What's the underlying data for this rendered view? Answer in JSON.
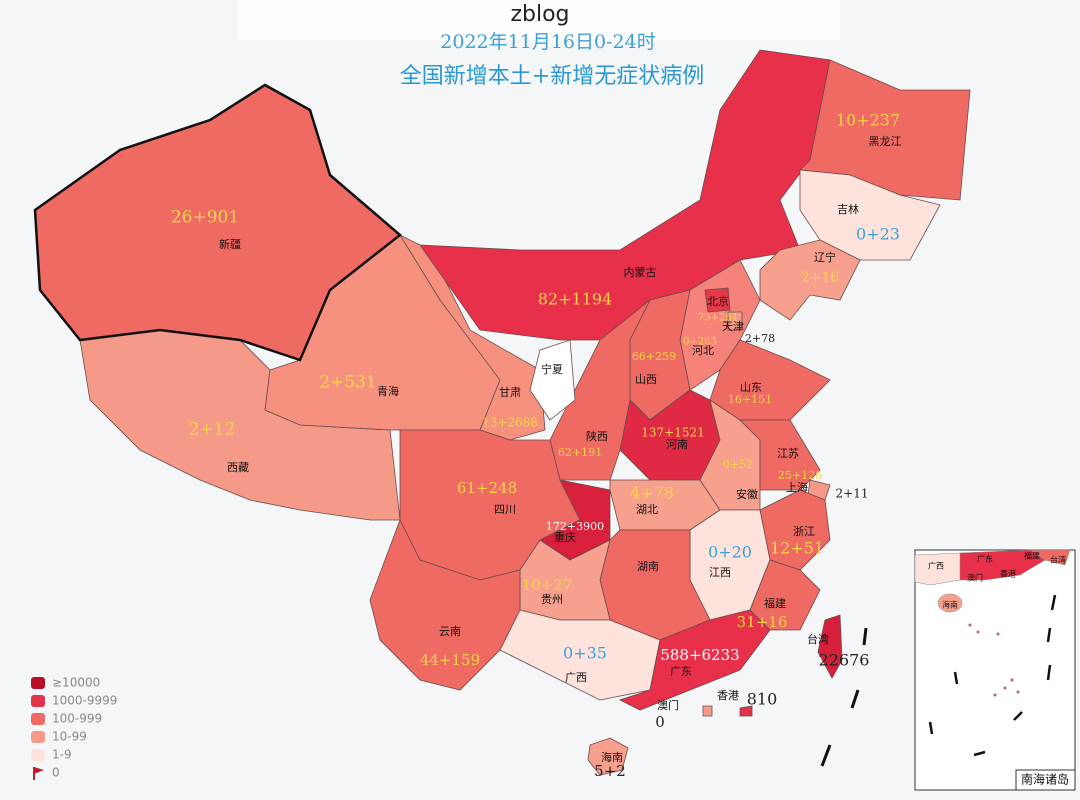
{
  "header": {
    "site": "zblog"
  },
  "title": [
    "2022年11月16日0-24时",
    "全国新增本土+新增无症状病例"
  ],
  "legend": [
    {
      "label": "≥10000",
      "color": "#b8102a"
    },
    {
      "label": "1000-9999",
      "color": "#e2334a"
    },
    {
      "label": "100-999",
      "color": "#f06a64"
    },
    {
      "label": "10-99",
      "color": "#f59a88"
    },
    {
      "label": "1-9",
      "color": "#fde3dc"
    },
    {
      "label": "0",
      "color": "#c41a30"
    }
  ],
  "regions": [
    {
      "name": "新疆",
      "value": "26+901",
      "color": "#f06a64",
      "value_color": "#f5d547"
    },
    {
      "name": "西藏",
      "value": "2+12",
      "color": "#f59a88",
      "value_color": "#f5d547"
    },
    {
      "name": "青海",
      "value": "2+531",
      "color": "#f6917f",
      "value_color": "#f5d547"
    },
    {
      "name": "甘肃",
      "value": "13+2688",
      "color": "#f6917f",
      "value_color": "#f5d547"
    },
    {
      "name": "内蒙古",
      "value": "82+1194",
      "color": "#e8304a",
      "value_color": "#f5d547"
    },
    {
      "name": "黑龙江",
      "value": "10+237",
      "color": "#f06a64",
      "value_color": "#f5d547"
    },
    {
      "name": "吉林",
      "value": "0+23",
      "color": "#fde3dc",
      "value_color": "#3aa0d8"
    },
    {
      "name": "辽宁",
      "value": "2+16",
      "color": "#f7a08e",
      "value_color": "#f5d547"
    },
    {
      "name": "河北",
      "value": "0+263",
      "color": "#f5837a",
      "value_color": "#f5d547"
    },
    {
      "name": "北京",
      "value": "73+261",
      "color": "#e63a4c",
      "value_color": "#f5d547"
    },
    {
      "name": "天津",
      "value": "2+78",
      "color": "#f59a88",
      "value_color": "#222222"
    },
    {
      "name": "山西",
      "value": "66+259",
      "color": "#f06a64",
      "value_color": "#f5d547"
    },
    {
      "name": "山东",
      "value": "16+151",
      "color": "#f06a64",
      "value_color": "#f5d547"
    },
    {
      "name": "河南",
      "value": "137+1521",
      "color": "#e02a45",
      "value_color": "#f5d547"
    },
    {
      "name": "陕西",
      "value": "62+191",
      "color": "#f06a64",
      "value_color": "#f5d547"
    },
    {
      "name": "宁夏",
      "value": "",
      "color": "#ffffff",
      "value_color": "#222222"
    },
    {
      "name": "四川",
      "value": "61+248",
      "color": "#f06a64",
      "value_color": "#f5d547"
    },
    {
      "name": "重庆",
      "value": "172+3900",
      "color": "#d8203c",
      "value_color": "#ffffff"
    },
    {
      "name": "湖北",
      "value": "4+78",
      "color": "#f7a08e",
      "value_color": "#f5d547"
    },
    {
      "name": "安徽",
      "value": "0+52",
      "color": "#f7a08e",
      "value_color": "#f5d547"
    },
    {
      "name": "江苏",
      "value": "25+126",
      "color": "#f06a64",
      "value_color": "#f5d547"
    },
    {
      "name": "上海",
      "value": "2+11",
      "color": "#f59a88",
      "value_color": "#222222"
    },
    {
      "name": "浙江",
      "value": "12+51",
      "color": "#f06a64",
      "value_color": "#f5d547"
    },
    {
      "name": "江西",
      "value": "0+20",
      "color": "#fde3dc",
      "value_color": "#3aa0d8"
    },
    {
      "name": "湖南",
      "value": "",
      "color": "#f06a64",
      "value_color": "#f5d547"
    },
    {
      "name": "贵州",
      "value": "10+27",
      "color": "#f7a08e",
      "value_color": "#f5d547"
    },
    {
      "name": "云南",
      "value": "44+159",
      "color": "#f06a64",
      "value_color": "#f5d547"
    },
    {
      "name": "广西",
      "value": "0+35",
      "color": "#fde3dc",
      "value_color": "#3aa0d8"
    },
    {
      "name": "广东",
      "value": "588+6233",
      "color": "#e8304a",
      "value_color": "#ffffff"
    },
    {
      "name": "福建",
      "value": "31+16",
      "color": "#f06a64",
      "value_color": "#f5d547"
    },
    {
      "name": "海南",
      "value": "5+2",
      "color": "#f7a08e",
      "value_color": "#222222"
    },
    {
      "name": "台湾",
      "value": "22676",
      "color": "#d61f3a",
      "value_color": "#222222"
    },
    {
      "name": "香港",
      "value": "810",
      "color": "#e2334a",
      "value_color": "#222222"
    },
    {
      "name": "澳门",
      "value": "0",
      "color": "#f59a88",
      "value_color": "#222222"
    }
  ],
  "inset": {
    "title": "南海诸岛",
    "labels": [
      "广西",
      "广东",
      "福建",
      "台湾",
      "澳门",
      "香港",
      "海南"
    ]
  }
}
